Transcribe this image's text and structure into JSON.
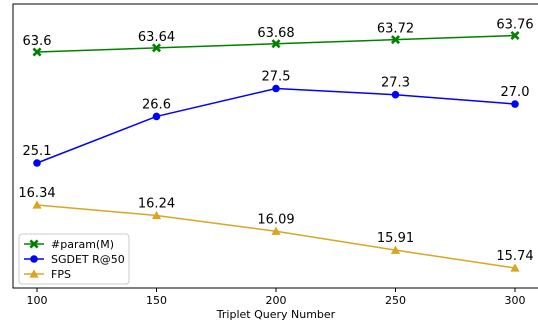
{
  "chart_data": {
    "type": "line",
    "xlabel": "Triplet Query Number",
    "ylabel": "",
    "title": "",
    "x": [
      100,
      150,
      200,
      250,
      300
    ],
    "x_ticks": [
      "100",
      "150",
      "200",
      "250",
      "300"
    ],
    "series": [
      {
        "name": "#param(M)",
        "color": "#008000",
        "marker": "x-mark",
        "values": [
          63.6,
          63.64,
          63.68,
          63.72,
          63.76
        ],
        "labels": [
          "63.6",
          "63.64",
          "63.68",
          "63.72",
          "63.76"
        ]
      },
      {
        "name": "SGDET R@50",
        "color": "#0000ff",
        "marker": "circle",
        "values": [
          25.1,
          26.6,
          27.5,
          27.3,
          27.0
        ],
        "labels": [
          "25.1",
          "26.6",
          "27.5",
          "27.3",
          "27.0"
        ]
      },
      {
        "name": "FPS",
        "color": "#daa520",
        "marker": "triangle",
        "values": [
          16.34,
          16.24,
          16.09,
          15.91,
          15.74
        ],
        "labels": [
          "16.34",
          "16.24",
          "16.09",
          "15.91",
          "15.74"
        ]
      }
    ],
    "legend_position": "lower-left",
    "grid": false,
    "y_axis_visible": false
  }
}
